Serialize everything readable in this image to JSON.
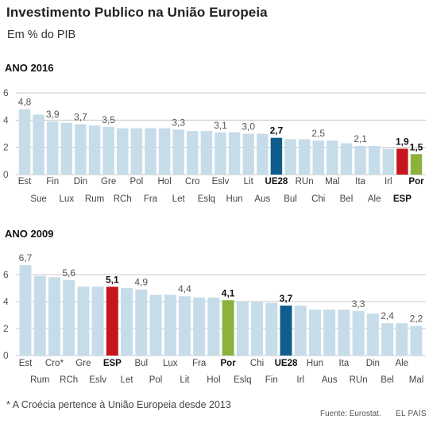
{
  "title": "Investimento Publico na União Europeia",
  "subtitle": "Em % do PIB",
  "footnote": "* A Croécia pertence à União Europeia desde 2013",
  "source": "Fuente: Eurostat.",
  "publisher": "EL PAÍS",
  "colors": {
    "bar": "#c6dce9",
    "grid": "#c8c8c8",
    "UE28": "#0f5d8e",
    "ESP": "#c4161c",
    "Por": "#8db23c"
  },
  "chart_data": [
    {
      "type": "bar",
      "title": "ANO 2016",
      "ylim": [
        0,
        6
      ],
      "yticks": [
        0,
        2,
        4,
        6
      ],
      "grid": true,
      "categories": [
        "Est",
        "Sue",
        "Fin",
        "Lux",
        "Din",
        "Rum",
        "Gre",
        "RCh",
        "Pol",
        "Fra",
        "Hol",
        "Let",
        "Cro",
        "Eslq",
        "Eslv",
        "Hun",
        "Lit",
        "Aus",
        "UE28",
        "Bul",
        "RUn",
        "Chi",
        "Mal",
        "Bel",
        "Ita",
        "Ale",
        "Irl",
        "ESP",
        "Por"
      ],
      "values": [
        4.8,
        4.4,
        3.9,
        3.8,
        3.7,
        3.6,
        3.5,
        3.4,
        3.4,
        3.4,
        3.4,
        3.3,
        3.2,
        3.2,
        3.1,
        3.1,
        3.0,
        3.0,
        2.7,
        2.6,
        2.6,
        2.5,
        2.5,
        2.3,
        2.1,
        2.1,
        1.9,
        1.9,
        1.5
      ],
      "value_labels": [
        {
          "category": "Est",
          "text": "4,8"
        },
        {
          "category": "Fin",
          "text": "3,9"
        },
        {
          "category": "Din",
          "text": "3,7"
        },
        {
          "category": "Gre",
          "text": "3,5"
        },
        {
          "category": "Let",
          "text": "3,3"
        },
        {
          "category": "Eslv",
          "text": "3,1"
        },
        {
          "category": "Lit",
          "text": "3,0"
        },
        {
          "category": "UE28",
          "text": "2,7"
        },
        {
          "category": "Chi",
          "text": "2,5"
        },
        {
          "category": "Ita",
          "text": "2,1"
        },
        {
          "category": "ESP",
          "text": "1,9"
        },
        {
          "category": "Por",
          "text": "1,5"
        }
      ],
      "highlight": [
        "UE28",
        "ESP",
        "Por"
      ]
    },
    {
      "type": "bar",
      "title": "ANO 2009",
      "ylim": [
        0,
        6
      ],
      "yticks": [
        0,
        2,
        4,
        6
      ],
      "grid": true,
      "categories": [
        "Est",
        "Rum",
        "Cro*",
        "RCh",
        "Gre",
        "Eslv",
        "ESP",
        "Let",
        "Bul",
        "Pol",
        "Lux",
        "Lit",
        "Fra",
        "Hol",
        "Por",
        "Eslq",
        "Chi",
        "Fin",
        "UE28",
        "Irl",
        "Hun",
        "Aus",
        "Ita",
        "RUn",
        "Din",
        "Bel",
        "Ale",
        "Mal"
      ],
      "values": [
        6.7,
        5.9,
        5.8,
        5.6,
        5.1,
        5.1,
        5.1,
        5.0,
        4.9,
        4.5,
        4.5,
        4.4,
        4.3,
        4.3,
        4.1,
        4.0,
        4.0,
        3.9,
        3.7,
        3.7,
        3.4,
        3.4,
        3.4,
        3.3,
        3.1,
        2.4,
        2.4,
        2.2
      ],
      "value_labels": [
        {
          "category": "Est",
          "text": "6,7"
        },
        {
          "category": "RCh",
          "text": "5,6"
        },
        {
          "category": "ESP",
          "text": "5,1"
        },
        {
          "category": "Bul",
          "text": "4,9"
        },
        {
          "category": "Lit",
          "text": "4,4"
        },
        {
          "category": "Por",
          "text": "4,1"
        },
        {
          "category": "UE28",
          "text": "3,7"
        },
        {
          "category": "RUn",
          "text": "3,3"
        },
        {
          "category": "Bel",
          "text": "2,4"
        },
        {
          "category": "Mal",
          "text": "2,2"
        }
      ],
      "highlight": [
        "UE28",
        "ESP",
        "Por"
      ]
    }
  ]
}
